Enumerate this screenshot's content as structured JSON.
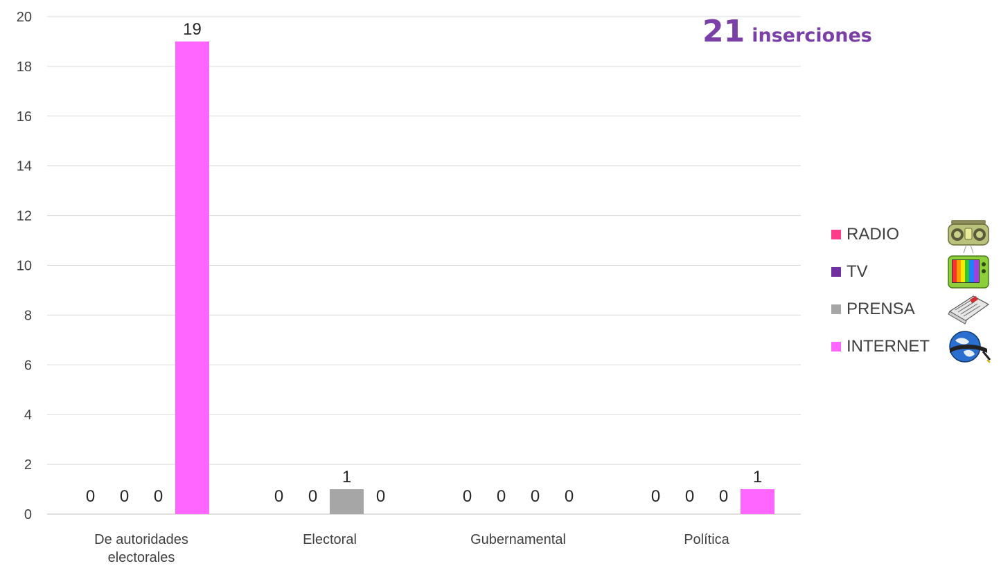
{
  "summary": {
    "total_number": "21",
    "total_word": "inserciones"
  },
  "chart_data": {
    "type": "bar",
    "title": "",
    "xlabel": "",
    "ylabel": "",
    "ylim": [
      0,
      20
    ],
    "yticks": [
      0,
      2,
      4,
      6,
      8,
      10,
      12,
      14,
      16,
      18,
      20
    ],
    "grid": true,
    "legend_position": "right",
    "categories": [
      "De autoridades electorales",
      "Electoral",
      "Gubernamental",
      "Política"
    ],
    "series": [
      {
        "name": "RADIO",
        "color": "#ff3d8b",
        "values": [
          0,
          0,
          0,
          0
        ],
        "icon": "boombox-radio-icon"
      },
      {
        "name": "TV",
        "color": "#7030a0",
        "values": [
          0,
          0,
          0,
          0
        ],
        "icon": "television-icon"
      },
      {
        "name": "PRENSA",
        "color": "#a6a6a6",
        "values": [
          0,
          1,
          0,
          0
        ],
        "icon": "newspaper-icon"
      },
      {
        "name": "INTERNET",
        "color": "#ff66ff",
        "values": [
          19,
          0,
          0,
          1
        ],
        "icon": "globe-cable-icon"
      }
    ]
  }
}
